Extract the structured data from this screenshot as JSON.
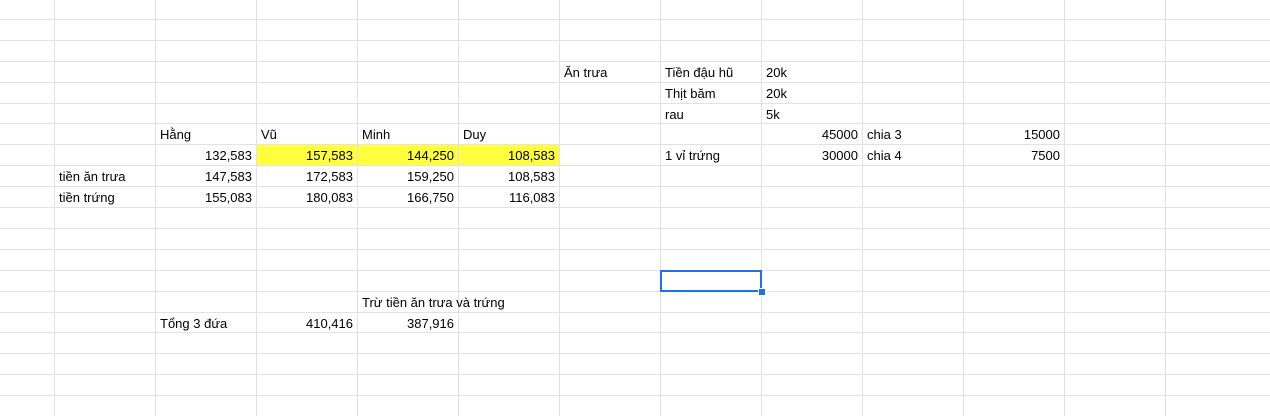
{
  "sheet": {
    "highlight_color": "#ffff3d",
    "selection_color": "#1a73e8",
    "selected_cell": "H14",
    "cells": [
      {
        "ref": "G4",
        "value": "Ăn trưa",
        "align": "left"
      },
      {
        "ref": "H4",
        "value": "Tiền đậu hũ",
        "align": "left"
      },
      {
        "ref": "I4",
        "value": "20k",
        "align": "left"
      },
      {
        "ref": "H5",
        "value": "Thịt băm",
        "align": "left"
      },
      {
        "ref": "I5",
        "value": "20k",
        "align": "left"
      },
      {
        "ref": "H6",
        "value": "rau",
        "align": "left"
      },
      {
        "ref": "I6",
        "value": "5k",
        "align": "left"
      },
      {
        "ref": "C7",
        "value": "Hằng",
        "align": "left"
      },
      {
        "ref": "D7",
        "value": "Vũ",
        "align": "left"
      },
      {
        "ref": "E7",
        "value": "Minh",
        "align": "left"
      },
      {
        "ref": "F7",
        "value": "Duy",
        "align": "left"
      },
      {
        "ref": "I7",
        "value": "45000",
        "align": "right"
      },
      {
        "ref": "J7",
        "value": "chia 3",
        "align": "left"
      },
      {
        "ref": "K7",
        "value": "15000",
        "align": "right"
      },
      {
        "ref": "C8",
        "value": "132,583",
        "align": "right"
      },
      {
        "ref": "D8",
        "value": "157,583",
        "align": "right",
        "highlight": true
      },
      {
        "ref": "E8",
        "value": "144,250",
        "align": "right",
        "highlight": true
      },
      {
        "ref": "F8",
        "value": "108,583",
        "align": "right",
        "highlight": true
      },
      {
        "ref": "H8",
        "value": "1 vỉ trứng",
        "align": "left"
      },
      {
        "ref": "I8",
        "value": "30000",
        "align": "right"
      },
      {
        "ref": "J8",
        "value": "chia 4",
        "align": "left"
      },
      {
        "ref": "K8",
        "value": "7500",
        "align": "right"
      },
      {
        "ref": "B9",
        "value": "tiền ăn trưa",
        "align": "left"
      },
      {
        "ref": "C9",
        "value": "147,583",
        "align": "right"
      },
      {
        "ref": "D9",
        "value": "172,583",
        "align": "right"
      },
      {
        "ref": "E9",
        "value": "159,250",
        "align": "right"
      },
      {
        "ref": "F9",
        "value": "108,583",
        "align": "right"
      },
      {
        "ref": "B10",
        "value": "tiền trứng",
        "align": "left"
      },
      {
        "ref": "C10",
        "value": "155,083",
        "align": "right"
      },
      {
        "ref": "D10",
        "value": "180,083",
        "align": "right"
      },
      {
        "ref": "E10",
        "value": "166,750",
        "align": "right"
      },
      {
        "ref": "F10",
        "value": "116,083",
        "align": "right"
      },
      {
        "ref": "E15",
        "value": "Trừ tiền ăn trưa và trứng",
        "align": "left",
        "overflow": true
      },
      {
        "ref": "C16",
        "value": "Tổng 3 đứa",
        "align": "left"
      },
      {
        "ref": "D16",
        "value": "410,416",
        "align": "right"
      },
      {
        "ref": "E16",
        "value": "387,916",
        "align": "right"
      }
    ]
  }
}
